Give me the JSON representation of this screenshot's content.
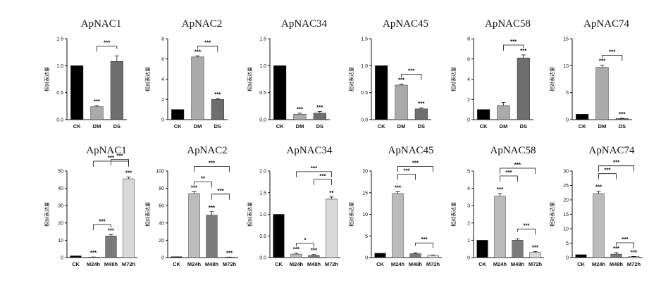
{
  "chart_data": [
    {
      "type": "bar",
      "title": "ApNAC1",
      "ylabel": "相对表达量",
      "categories": [
        "CK",
        "DM",
        "DS"
      ],
      "values": [
        1.0,
        0.24,
        1.08
      ],
      "errors": [
        0,
        0.02,
        0.1
      ],
      "colors": [
        "#000000",
        "#aaaaaa",
        "#6e6e6e"
      ],
      "ylim": [
        0,
        1.5
      ],
      "yticks": [
        "0.0",
        "0.5",
        "1.0",
        "1.5"
      ],
      "sig": [
        "",
        "***",
        ""
      ],
      "brackets": [
        {
          "from": 1,
          "to": 2,
          "label": "***"
        }
      ]
    },
    {
      "type": "bar",
      "title": "ApNAC2",
      "ylabel": "相对表达量",
      "categories": [
        "CK",
        "DM",
        "DS"
      ],
      "values": [
        1.0,
        6.2,
        2.0
      ],
      "errors": [
        0,
        0.1,
        0.1
      ],
      "colors": [
        "#000000",
        "#aaaaaa",
        "#6e6e6e"
      ],
      "ylim": [
        0,
        8
      ],
      "yticks": [
        "0",
        "2",
        "4",
        "6",
        "8"
      ],
      "sig": [
        "",
        "***",
        "***"
      ],
      "brackets": [
        {
          "from": 1,
          "to": 2,
          "label": "***"
        }
      ]
    },
    {
      "type": "bar",
      "title": "ApNAC34",
      "ylabel": "相对表达量",
      "categories": [
        "CK",
        "DM",
        "DS"
      ],
      "values": [
        1.0,
        0.1,
        0.12
      ],
      "errors": [
        0,
        0.02,
        0.03
      ],
      "colors": [
        "#000000",
        "#aaaaaa",
        "#6e6e6e"
      ],
      "ylim": [
        0,
        1.5
      ],
      "yticks": [
        "0.0",
        "0.5",
        "1.0",
        "1.5"
      ],
      "sig": [
        "",
        "***",
        "***"
      ],
      "brackets": []
    },
    {
      "type": "bar",
      "title": "ApNAC45",
      "ylabel": "相对表达量",
      "categories": [
        "CK",
        "DM",
        "DS"
      ],
      "values": [
        1.0,
        0.64,
        0.2
      ],
      "errors": [
        0,
        0.02,
        0.02
      ],
      "colors": [
        "#000000",
        "#aaaaaa",
        "#6e6e6e"
      ],
      "ylim": [
        0,
        1.5
      ],
      "yticks": [
        "0.0",
        "0.5",
        "1.0",
        "1.5"
      ],
      "sig": [
        "",
        "***",
        "***"
      ],
      "brackets": [
        {
          "from": 1,
          "to": 2,
          "label": "***"
        }
      ]
    },
    {
      "type": "bar",
      "title": "ApNAC58",
      "ylabel": "相对表达量",
      "categories": [
        "CK",
        "DM",
        "DS"
      ],
      "values": [
        1.0,
        1.4,
        6.1
      ],
      "errors": [
        0,
        0.3,
        0.3
      ],
      "colors": [
        "#000000",
        "#aaaaaa",
        "#6e6e6e"
      ],
      "ylim": [
        0,
        8
      ],
      "yticks": [
        "0",
        "2",
        "4",
        "6",
        "8"
      ],
      "sig": [
        "",
        "",
        "***"
      ],
      "brackets": [
        {
          "from": 1,
          "to": 2,
          "label": "***"
        }
      ]
    },
    {
      "type": "bar",
      "title": "ApNAC74",
      "ylabel": "相对表达量",
      "categories": [
        "CK",
        "DM",
        "DS"
      ],
      "values": [
        1.0,
        9.7,
        0.2
      ],
      "errors": [
        0,
        0.4,
        0.05
      ],
      "colors": [
        "#000000",
        "#aaaaaa",
        "#6e6e6e"
      ],
      "ylim": [
        0,
        15
      ],
      "yticks": [
        "0",
        "5",
        "10",
        "15"
      ],
      "sig": [
        "",
        "***",
        "***"
      ],
      "brackets": [
        {
          "from": 1,
          "to": 2,
          "label": "***"
        }
      ]
    },
    {
      "type": "bar",
      "title": "ApNAC1",
      "ylabel": "相对表达量",
      "categories": [
        "CK",
        "M24h",
        "M48h",
        "M72h"
      ],
      "values": [
        1.0,
        0.3,
        12.5,
        45.5
      ],
      "errors": [
        0,
        0.05,
        0.8,
        1.0
      ],
      "colors": [
        "#000000",
        "#bbbbbb",
        "#7a7a7a",
        "#d9d9d9"
      ],
      "ylim": [
        0,
        50
      ],
      "yticks": [
        "0",
        "10",
        "20",
        "30",
        "40",
        "50"
      ],
      "sig": [
        "",
        "***",
        "***",
        "***"
      ],
      "brackets": [
        {
          "from": 1,
          "to": 2,
          "label": "***"
        },
        {
          "from": 2,
          "to": 3,
          "label": "***"
        },
        {
          "from": 1,
          "to": 3,
          "label": "***"
        }
      ]
    },
    {
      "type": "bar",
      "title": "ApNAC2",
      "ylabel": "相对表达量",
      "categories": [
        "CK",
        "M24h",
        "M48h",
        "M72h"
      ],
      "values": [
        1.0,
        74.0,
        49.0,
        0.5
      ],
      "errors": [
        0,
        2,
        4,
        0.1
      ],
      "colors": [
        "#000000",
        "#bbbbbb",
        "#7a7a7a",
        "#d9d9d9"
      ],
      "ylim": [
        0,
        100
      ],
      "yticks": [
        "0",
        "20",
        "40",
        "60",
        "80",
        "100"
      ],
      "sig": [
        "",
        "***",
        "***",
        "***"
      ],
      "brackets": [
        {
          "from": 1,
          "to": 2,
          "label": "**"
        },
        {
          "from": 2,
          "to": 3,
          "label": "***"
        },
        {
          "from": 1,
          "to": 3,
          "label": "***"
        }
      ]
    },
    {
      "type": "bar",
      "title": "ApNAC34",
      "ylabel": "相对表达量",
      "categories": [
        "CK",
        "M24h",
        "M48h",
        "M72h"
      ],
      "values": [
        1.0,
        0.08,
        0.05,
        1.35
      ],
      "errors": [
        0,
        0.02,
        0.02,
        0.05
      ],
      "colors": [
        "#000000",
        "#bbbbbb",
        "#7a7a7a",
        "#d9d9d9"
      ],
      "ylim": [
        0,
        2.0
      ],
      "yticks": [
        "0.0",
        "0.5",
        "1.0",
        "1.5",
        "2.0"
      ],
      "sig": [
        "",
        "***",
        "***",
        "**"
      ],
      "brackets": [
        {
          "from": 1,
          "to": 2,
          "label": "*"
        },
        {
          "from": 2,
          "to": 3,
          "label": "***"
        },
        {
          "from": 1,
          "to": 3,
          "label": "***"
        }
      ]
    },
    {
      "type": "bar",
      "title": "ApNAC45",
      "ylabel": "相对表达量",
      "categories": [
        "CK",
        "M24h",
        "M48h",
        "M72h"
      ],
      "values": [
        1.0,
        14.8,
        0.9,
        0.5
      ],
      "errors": [
        0,
        0.4,
        0.2,
        0.1
      ],
      "colors": [
        "#000000",
        "#bbbbbb",
        "#7a7a7a",
        "#d9d9d9"
      ],
      "ylim": [
        0,
        20
      ],
      "yticks": [
        "0",
        "5",
        "10",
        "15",
        "20"
      ],
      "sig": [
        "",
        "***",
        "",
        ""
      ],
      "brackets": [
        {
          "from": 2,
          "to": 3,
          "label": "***"
        },
        {
          "from": 1,
          "to": 2,
          "label": "***"
        },
        {
          "from": 1,
          "to": 3,
          "label": "***"
        }
      ]
    },
    {
      "type": "bar",
      "title": "ApNAC58",
      "ylabel": "相对表达量",
      "categories": [
        "CK",
        "M24h",
        "M48h",
        "M72h"
      ],
      "values": [
        1.0,
        3.55,
        1.0,
        0.3
      ],
      "errors": [
        0,
        0.15,
        0.08,
        0.05
      ],
      "colors": [
        "#000000",
        "#bbbbbb",
        "#7a7a7a",
        "#d9d9d9"
      ],
      "ylim": [
        0,
        5
      ],
      "yticks": [
        "0",
        "1",
        "2",
        "3",
        "4",
        "5"
      ],
      "sig": [
        "",
        "***",
        "",
        "***"
      ],
      "brackets": [
        {
          "from": 2,
          "to": 3,
          "label": "***"
        },
        {
          "from": 1,
          "to": 2,
          "label": "***"
        },
        {
          "from": 1,
          "to": 3,
          "label": "***"
        }
      ]
    },
    {
      "type": "bar",
      "title": "ApNAC74",
      "ylabel": "相对表达量",
      "categories": [
        "CK",
        "M24h",
        "M48h",
        "M72h"
      ],
      "values": [
        1.0,
        22.2,
        1.2,
        0.3
      ],
      "errors": [
        0,
        0.8,
        0.5,
        0.1
      ],
      "colors": [
        "#000000",
        "#bbbbbb",
        "#7a7a7a",
        "#d9d9d9"
      ],
      "ylim": [
        0,
        30
      ],
      "yticks": [
        "0",
        "5",
        "10",
        "15",
        "20",
        "25",
        "30"
      ],
      "sig": [
        "",
        "***",
        "***",
        "***"
      ],
      "brackets": [
        {
          "from": 2,
          "to": 3,
          "label": "***"
        },
        {
          "from": 1,
          "to": 2,
          "label": "***"
        },
        {
          "from": 1,
          "to": 3,
          "label": "***"
        }
      ]
    }
  ]
}
